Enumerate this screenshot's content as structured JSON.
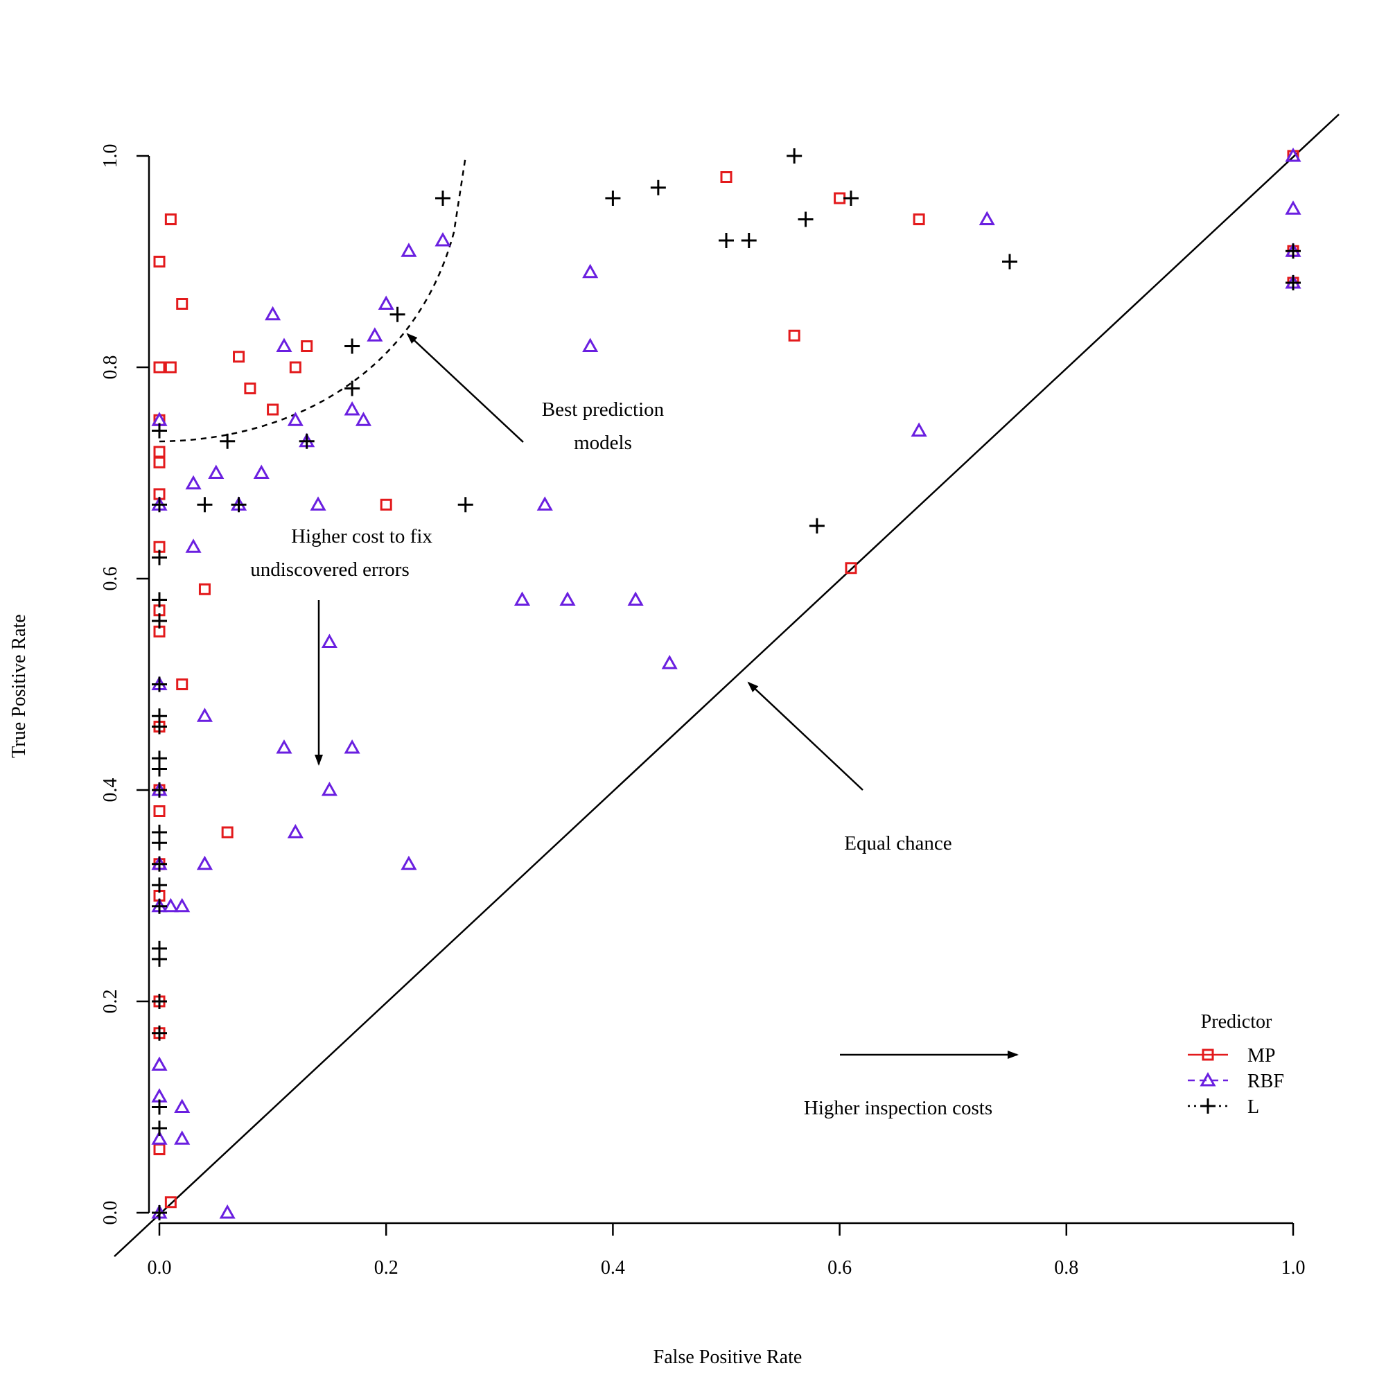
{
  "chart_data": {
    "type": "scatter",
    "xlabel": "False Positive Rate",
    "ylabel": "True Positive Rate",
    "xlim": [
      0,
      1
    ],
    "ylim": [
      0,
      1
    ],
    "xticks": [
      "0.0",
      "0.2",
      "0.4",
      "0.6",
      "0.8",
      "1.0"
    ],
    "yticks": [
      "0.0",
      "0.2",
      "0.4",
      "0.6",
      "0.8",
      "1.0"
    ],
    "grid": false,
    "legend": {
      "title": "Predictor",
      "position": "bottom-right",
      "entries": [
        "MP",
        "RBF",
        "L"
      ]
    },
    "colors": {
      "MP": "#e31a1c",
      "RBF": "#6a1fe0",
      "L": "#000000"
    },
    "series": [
      {
        "name": "MP",
        "marker": "square",
        "points": [
          [
            0.01,
            0.94
          ],
          [
            0.0,
            0.9
          ],
          [
            0.02,
            0.86
          ],
          [
            0.0,
            0.8
          ],
          [
            0.01,
            0.8
          ],
          [
            0.07,
            0.81
          ],
          [
            0.13,
            0.82
          ],
          [
            0.12,
            0.8
          ],
          [
            0.08,
            0.78
          ],
          [
            0.1,
            0.76
          ],
          [
            0.0,
            0.75
          ],
          [
            0.0,
            0.72
          ],
          [
            0.0,
            0.71
          ],
          [
            0.0,
            0.68
          ],
          [
            0.2,
            0.67
          ],
          [
            0.0,
            0.63
          ],
          [
            0.04,
            0.59
          ],
          [
            0.0,
            0.57
          ],
          [
            0.0,
            0.55
          ],
          [
            0.02,
            0.5
          ],
          [
            0.0,
            0.46
          ],
          [
            0.0,
            0.4
          ],
          [
            0.0,
            0.38
          ],
          [
            0.06,
            0.36
          ],
          [
            0.0,
            0.33
          ],
          [
            0.0,
            0.3
          ],
          [
            0.0,
            0.2
          ],
          [
            0.0,
            0.17
          ],
          [
            0.0,
            0.06
          ],
          [
            0.01,
            0.01
          ],
          [
            0.5,
            0.98
          ],
          [
            0.6,
            0.96
          ],
          [
            0.67,
            0.94
          ],
          [
            0.56,
            0.83
          ],
          [
            0.61,
            0.61
          ],
          [
            1.0,
            1.0
          ],
          [
            1.0,
            0.91
          ],
          [
            1.0,
            0.88
          ]
        ]
      },
      {
        "name": "RBF",
        "marker": "triangle",
        "points": [
          [
            0.22,
            0.91
          ],
          [
            0.25,
            0.92
          ],
          [
            0.2,
            0.86
          ],
          [
            0.1,
            0.85
          ],
          [
            0.11,
            0.82
          ],
          [
            0.19,
            0.83
          ],
          [
            0.12,
            0.75
          ],
          [
            0.17,
            0.76
          ],
          [
            0.18,
            0.75
          ],
          [
            0.13,
            0.73
          ],
          [
            0.0,
            0.75
          ],
          [
            0.05,
            0.7
          ],
          [
            0.03,
            0.69
          ],
          [
            0.09,
            0.7
          ],
          [
            0.0,
            0.67
          ],
          [
            0.07,
            0.67
          ],
          [
            0.14,
            0.67
          ],
          [
            0.03,
            0.63
          ],
          [
            0.15,
            0.54
          ],
          [
            0.04,
            0.47
          ],
          [
            0.11,
            0.44
          ],
          [
            0.17,
            0.44
          ],
          [
            0.15,
            0.4
          ],
          [
            0.12,
            0.36
          ],
          [
            0.04,
            0.33
          ],
          [
            0.22,
            0.33
          ],
          [
            0.0,
            0.29
          ],
          [
            0.01,
            0.29
          ],
          [
            0.02,
            0.29
          ],
          [
            0.0,
            0.14
          ],
          [
            0.0,
            0.11
          ],
          [
            0.02,
            0.1
          ],
          [
            0.0,
            0.07
          ],
          [
            0.02,
            0.07
          ],
          [
            0.0,
            0.0
          ],
          [
            0.06,
            0.0
          ],
          [
            0.0,
            0.5
          ],
          [
            0.0,
            0.4
          ],
          [
            0.0,
            0.33
          ],
          [
            0.38,
            0.89
          ],
          [
            0.38,
            0.82
          ],
          [
            0.34,
            0.67
          ],
          [
            0.32,
            0.58
          ],
          [
            0.36,
            0.58
          ],
          [
            0.42,
            0.58
          ],
          [
            0.45,
            0.52
          ],
          [
            0.73,
            0.94
          ],
          [
            0.67,
            0.74
          ],
          [
            1.0,
            1.0
          ],
          [
            1.0,
            0.95
          ],
          [
            1.0,
            0.91
          ],
          [
            1.0,
            0.88
          ]
        ]
      },
      {
        "name": "L",
        "marker": "plus",
        "points": [
          [
            0.25,
            0.96
          ],
          [
            0.21,
            0.85
          ],
          [
            0.17,
            0.82
          ],
          [
            0.17,
            0.78
          ],
          [
            0.13,
            0.73
          ],
          [
            0.06,
            0.73
          ],
          [
            0.0,
            0.74
          ],
          [
            0.0,
            0.67
          ],
          [
            0.04,
            0.67
          ],
          [
            0.07,
            0.67
          ],
          [
            0.27,
            0.67
          ],
          [
            0.0,
            0.62
          ],
          [
            0.0,
            0.58
          ],
          [
            0.0,
            0.56
          ],
          [
            0.0,
            0.5
          ],
          [
            0.0,
            0.47
          ],
          [
            0.0,
            0.46
          ],
          [
            0.0,
            0.43
          ],
          [
            0.0,
            0.42
          ],
          [
            0.0,
            0.4
          ],
          [
            0.0,
            0.36
          ],
          [
            0.0,
            0.35
          ],
          [
            0.0,
            0.33
          ],
          [
            0.0,
            0.31
          ],
          [
            0.0,
            0.29
          ],
          [
            0.0,
            0.25
          ],
          [
            0.0,
            0.24
          ],
          [
            0.0,
            0.2
          ],
          [
            0.0,
            0.17
          ],
          [
            0.0,
            0.1
          ],
          [
            0.0,
            0.08
          ],
          [
            0.0,
            0.0
          ],
          [
            0.4,
            0.96
          ],
          [
            0.44,
            0.97
          ],
          [
            0.56,
            1.0
          ],
          [
            0.5,
            0.92
          ],
          [
            0.52,
            0.92
          ],
          [
            0.57,
            0.94
          ],
          [
            0.61,
            0.96
          ],
          [
            0.75,
            0.9
          ],
          [
            0.58,
            0.65
          ],
          [
            1.0,
            0.91
          ],
          [
            1.0,
            0.88
          ]
        ]
      }
    ],
    "annotations": {
      "best_line1": "Best prediction",
      "best_line2": "models",
      "cost_line1": "Higher cost to fix",
      "cost_line2": "undiscovered errors",
      "equal": "Equal chance",
      "inspection": "Higher inspection costs"
    }
  }
}
